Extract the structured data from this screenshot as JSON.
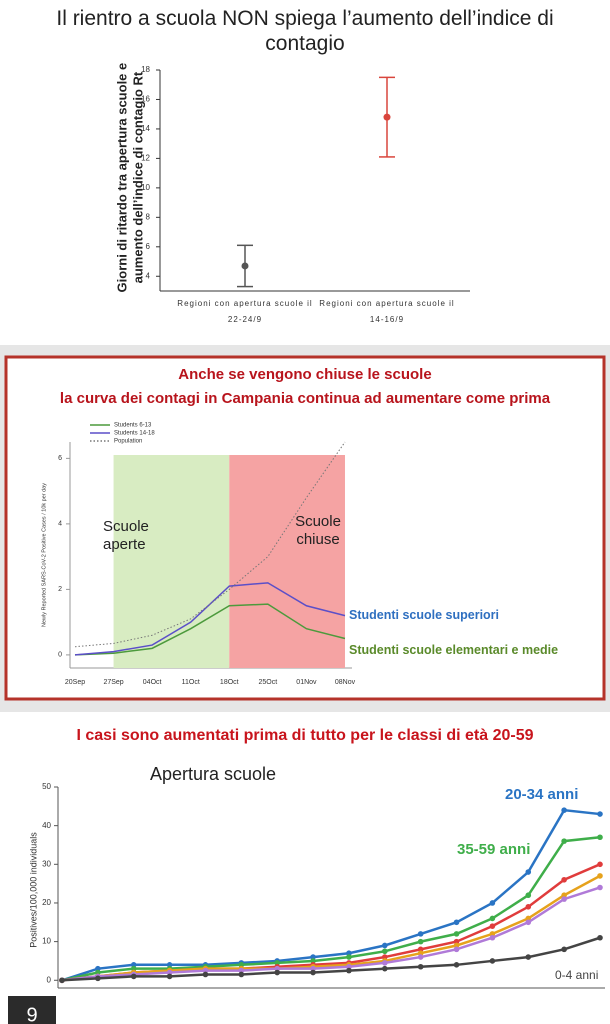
{
  "chart_data": [
    {
      "type": "errorbar",
      "title": "Il rientro a scuola NON spiega l’aumento dell’indice di contagio",
      "y_label": "Giorni di ritardo tra apertura scuole e aumento dell’indice di contagio Rt",
      "categories": [
        "Regioni con apertura scuole il 22-24/9",
        "Regioni con apertura scuole il 14-16/9"
      ],
      "values": [
        4.7,
        14.8
      ],
      "errors": [
        1.4,
        2.7
      ],
      "colors": [
        "#555555",
        "#d9453c"
      ],
      "ylim": [
        3,
        18
      ],
      "yticks": [
        4,
        6,
        8,
        10,
        12,
        14,
        16,
        18
      ]
    },
    {
      "type": "line",
      "title": "Anche se vengono chiuse le scuole",
      "subtitle": "la curva dei contagi in Campania continua ad aumentare come prima",
      "y_label": "Newly Reported SARS-CoV-2 Positive Cases / 10k  per day",
      "categories": [
        "20Sep",
        "27Sep",
        "04Oct",
        "11Oct",
        "18Oct",
        "25Oct",
        "01Nov",
        "08Nov"
      ],
      "series": [
        {
          "name": "Students 6-13",
          "color": "#4c9a3c",
          "values": [
            0,
            0.05,
            0.2,
            0.8,
            1.5,
            1.55,
            0.8,
            0.5
          ],
          "label": "Studenti scuole elementari e medie",
          "label_color": "#5a8a2a"
        },
        {
          "name": "Students 14-18",
          "color": "#5b4fc8",
          "values": [
            0,
            0.1,
            0.3,
            1.0,
            2.1,
            2.2,
            1.5,
            1.2
          ],
          "label": "Studenti scuole superiori",
          "label_color": "#2e6fc0"
        },
        {
          "name": "Population",
          "color": "#777777",
          "dashed": true,
          "values": [
            0.25,
            0.35,
            0.6,
            1.1,
            2.0,
            3.0,
            4.8,
            6.5
          ]
        }
      ],
      "regions": [
        {
          "from": 1,
          "to": 4,
          "color": "#d8ecc2"
        },
        {
          "from": 4,
          "to": 7,
          "color": "#f5a3a3"
        }
      ],
      "annotations": [
        "Scuole aperte",
        "Scuole chiuse"
      ],
      "ylim": [
        -0.4,
        6.5
      ],
      "yticks": [
        0,
        2,
        4,
        6
      ]
    },
    {
      "type": "line",
      "title": "I casi sono aumentati prima di tutto per le classi di età 20-59",
      "annotation": "Apertura scuole",
      "y_label": "Positives/100,000 individuals",
      "categories": [
        null,
        null,
        null,
        null,
        null,
        null,
        null,
        null,
        null,
        null,
        null,
        null,
        null,
        null,
        null,
        null
      ],
      "series": [
        {
          "name": "20-34 anni",
          "color": "#2a74c4",
          "values": [
            0,
            3,
            4,
            4,
            4,
            4.5,
            5,
            6,
            7,
            9,
            12,
            15,
            20,
            28,
            44,
            43
          ]
        },
        {
          "name": "35-59 anni",
          "color": "#3fae4a",
          "values": [
            0,
            2,
            3,
            3,
            3.5,
            4,
            4.5,
            5,
            6,
            7.5,
            10,
            12,
            16,
            22,
            36,
            37
          ]
        },
        {
          "color": "#e03c3c",
          "values": [
            0,
            1,
            2,
            2.5,
            3,
            3,
            3.5,
            4,
            4.5,
            6,
            8,
            10,
            14,
            19,
            26,
            30
          ]
        },
        {
          "color": "#e6a21c",
          "values": [
            0,
            1,
            2,
            2.5,
            3,
            3,
            3,
            3.5,
            4,
            5,
            7,
            9,
            12,
            16,
            22,
            27
          ]
        },
        {
          "color": "#b07ad8",
          "values": [
            0,
            1,
            1.5,
            2,
            2.5,
            2.5,
            3,
            3,
            3.5,
            4.5,
            6,
            8,
            11,
            15,
            21,
            24
          ]
        },
        {
          "name": "0-4 anni",
          "color": "#444444",
          "values": [
            0,
            0.5,
            1,
            1,
            1.5,
            1.5,
            2,
            2,
            2.5,
            3,
            3.5,
            4,
            5,
            6,
            8,
            11
          ]
        }
      ],
      "ylim": [
        -2,
        50
      ],
      "yticks": [
        0,
        10,
        20,
        30,
        40,
        50
      ]
    }
  ],
  "page_number": "9"
}
